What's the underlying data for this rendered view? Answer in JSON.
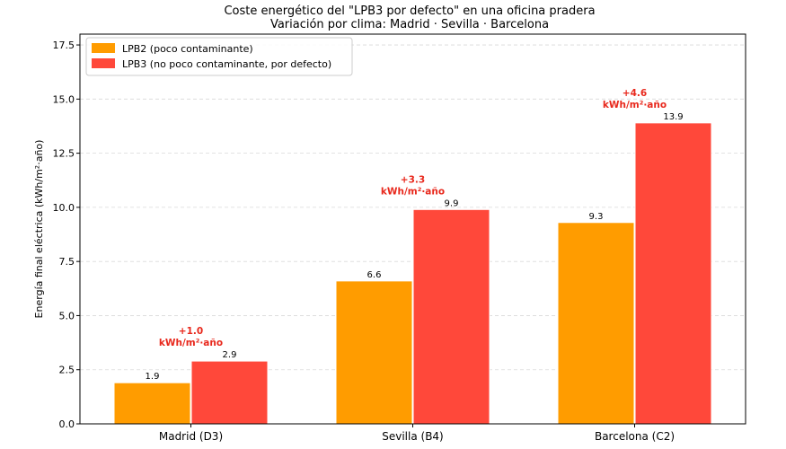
{
  "chart_data": {
    "type": "bar",
    "title": "Coste energético del \"LPB3 por defecto\" en una oficina pradera",
    "subtitle": "Variación por clima: Madrid · Sevilla · Barcelona",
    "xlabel": "",
    "ylabel": "Energía final eléctrica (kWh/m²·año)",
    "ylim": [
      0,
      18.0
    ],
    "yticks": [
      "0.0",
      "2.5",
      "5.0",
      "7.5",
      "10.0",
      "12.5",
      "15.0",
      "17.5"
    ],
    "grid": "horizontal dashed",
    "legend_position": "top-left",
    "categories": [
      "Madrid (D3)",
      "Sevilla (B4)",
      "Barcelona (C2)"
    ],
    "series": [
      {
        "name": "LPB2 (poco contaminante)",
        "color": "#FF9C00",
        "values": [
          1.9,
          6.6,
          9.3
        ],
        "labels": [
          "1.9",
          "6.6",
          "9.3"
        ]
      },
      {
        "name": "LPB3 (no poco contaminante, por defecto)",
        "color": "#FF483A",
        "values": [
          2.9,
          9.9,
          13.9
        ],
        "labels": [
          "2.9",
          "9.9",
          "13.9"
        ]
      }
    ],
    "annotations": [
      {
        "line1": "+1.0",
        "line2": "kWh/m²·año"
      },
      {
        "line1": "+3.3",
        "line2": "kWh/m²·año"
      },
      {
        "line1": "+4.6",
        "line2": "kWh/m²·año"
      }
    ],
    "annotation_color": "#E8281C"
  }
}
